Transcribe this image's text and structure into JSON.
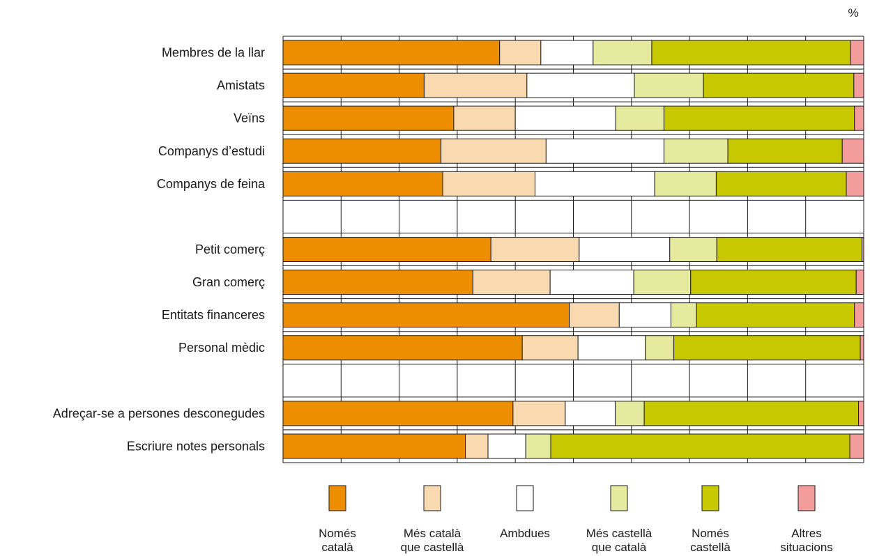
{
  "chart_data": {
    "type": "bar",
    "orientation": "horizontal",
    "stacked": true,
    "normalized": true,
    "unit": "%",
    "grid": true,
    "legend_position": "bottom",
    "xlim": [
      0,
      100
    ],
    "categories": [
      "Membres de la llar",
      "Amistats",
      "Veïns",
      "Companys d’estudi",
      "Companys de feina",
      "",
      "Petit comerç",
      "Gran comerç",
      "Entitats financeres",
      "Personal mèdic",
      "",
      "Adreçar-se a persones desconegudes",
      "Escriure notes personals"
    ],
    "series": [
      {
        "name": [
          "Només",
          "català"
        ],
        "color": "#ec8e00",
        "values": [
          37.3,
          24.3,
          29.4,
          27.2,
          27.5,
          null,
          35.8,
          32.7,
          49.3,
          41.2,
          null,
          39.6,
          31.4
        ]
      },
      {
        "name": [
          "Més català",
          "que castellà"
        ],
        "color": "#f9dab0",
        "values": [
          7.1,
          17.7,
          10.6,
          18.1,
          15.9,
          null,
          15.2,
          13.3,
          8.6,
          9.6,
          null,
          9.0,
          3.9
        ]
      },
      {
        "name": [
          "Ambdues"
        ],
        "color": "#ffffff",
        "values": [
          9.0,
          18.5,
          17.3,
          20.3,
          20.6,
          null,
          15.6,
          14.4,
          8.9,
          11.6,
          null,
          8.6,
          6.5
        ]
      },
      {
        "name": [
          "Més castellà",
          "que català"
        ],
        "color": "#e6ea9e",
        "values": [
          10.1,
          11.9,
          8.3,
          11.0,
          10.6,
          null,
          8.1,
          9.8,
          4.4,
          4.9,
          null,
          5.0,
          4.3
        ]
      },
      {
        "name": [
          "Només",
          "castellà"
        ],
        "color": "#c7c800",
        "values": [
          34.2,
          25.9,
          32.8,
          19.7,
          22.4,
          null,
          25.0,
          28.5,
          27.2,
          32.1,
          null,
          36.9,
          51.5
        ]
      },
      {
        "name": [
          "Altres",
          "situacions"
        ],
        "color": "#f39c9c",
        "values": [
          2.3,
          1.7,
          1.6,
          3.7,
          3.0,
          null,
          0.3,
          1.3,
          1.6,
          0.6,
          null,
          0.9,
          2.4
        ]
      }
    ]
  }
}
